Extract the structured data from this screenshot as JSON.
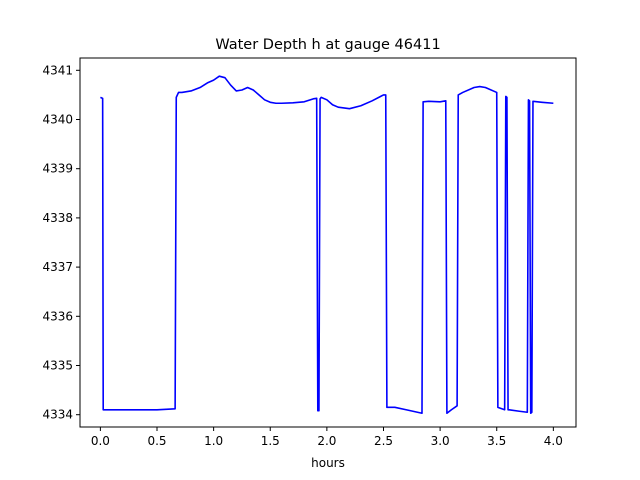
{
  "chart_data": {
    "type": "line",
    "title": "Water Depth h at gauge 46411",
    "xlabel": "hours",
    "ylabel": "",
    "xlim": [
      -0.18,
      4.2
    ],
    "ylim": [
      4333.75,
      4341.25
    ],
    "xticks": [
      0.0,
      0.5,
      1.0,
      1.5,
      2.0,
      2.5,
      3.0,
      3.5,
      4.0
    ],
    "xtick_labels": [
      "0.0",
      "0.5",
      "1.0",
      "1.5",
      "2.0",
      "2.5",
      "3.0",
      "3.5",
      "4.0"
    ],
    "yticks": [
      4334,
      4335,
      4336,
      4337,
      4338,
      4339,
      4340,
      4341
    ],
    "ytick_labels": [
      "4334",
      "4335",
      "4336",
      "4337",
      "4338",
      "4339",
      "4340",
      "4341"
    ],
    "grid": false,
    "series": [
      {
        "color": "#0000ff",
        "x": [
          0.0,
          0.02,
          0.025,
          0.3,
          0.5,
          0.66,
          0.67,
          0.69,
          0.72,
          0.8,
          0.88,
          0.95,
          1.0,
          1.05,
          1.1,
          1.15,
          1.2,
          1.25,
          1.3,
          1.35,
          1.4,
          1.45,
          1.5,
          1.55,
          1.6,
          1.7,
          1.8,
          1.88,
          1.91,
          1.92,
          1.93,
          1.94,
          1.95,
          2.0,
          2.05,
          2.1,
          2.2,
          2.3,
          2.4,
          2.5,
          2.52,
          2.53,
          2.6,
          2.7,
          2.84,
          2.85,
          2.9,
          3.0,
          3.05,
          3.06,
          3.1,
          3.15,
          3.16,
          3.2,
          3.3,
          3.35,
          3.4,
          3.5,
          3.51,
          3.57,
          3.58,
          3.59,
          3.6,
          3.61,
          3.7,
          3.77,
          3.78,
          3.79,
          3.8,
          3.81,
          3.82,
          3.9,
          4.0
        ],
        "y": [
          4340.45,
          4340.43,
          4334.1,
          4334.1,
          4334.1,
          4334.12,
          4340.45,
          4340.55,
          4340.55,
          4340.58,
          4340.65,
          4340.75,
          4340.8,
          4340.88,
          4340.85,
          4340.7,
          4340.58,
          4340.6,
          4340.65,
          4340.6,
          4340.5,
          4340.4,
          4340.35,
          4340.33,
          4340.33,
          4340.34,
          4340.36,
          4340.42,
          4340.43,
          4334.08,
          4334.08,
          4340.42,
          4340.45,
          4340.4,
          4340.3,
          4340.25,
          4340.22,
          4340.28,
          4340.38,
          4340.5,
          4340.5,
          4334.15,
          4334.15,
          4334.1,
          4334.03,
          4340.36,
          4340.37,
          4340.36,
          4340.38,
          4334.03,
          4334.1,
          4334.18,
          4340.5,
          4340.55,
          4340.65,
          4340.67,
          4340.65,
          4340.55,
          4334.15,
          4334.1,
          4340.47,
          4340.45,
          4334.1,
          4334.1,
          4334.07,
          4334.05,
          4340.4,
          4340.38,
          4334.03,
          4334.05,
          4340.37,
          4340.35,
          4340.33
        ]
      }
    ]
  }
}
